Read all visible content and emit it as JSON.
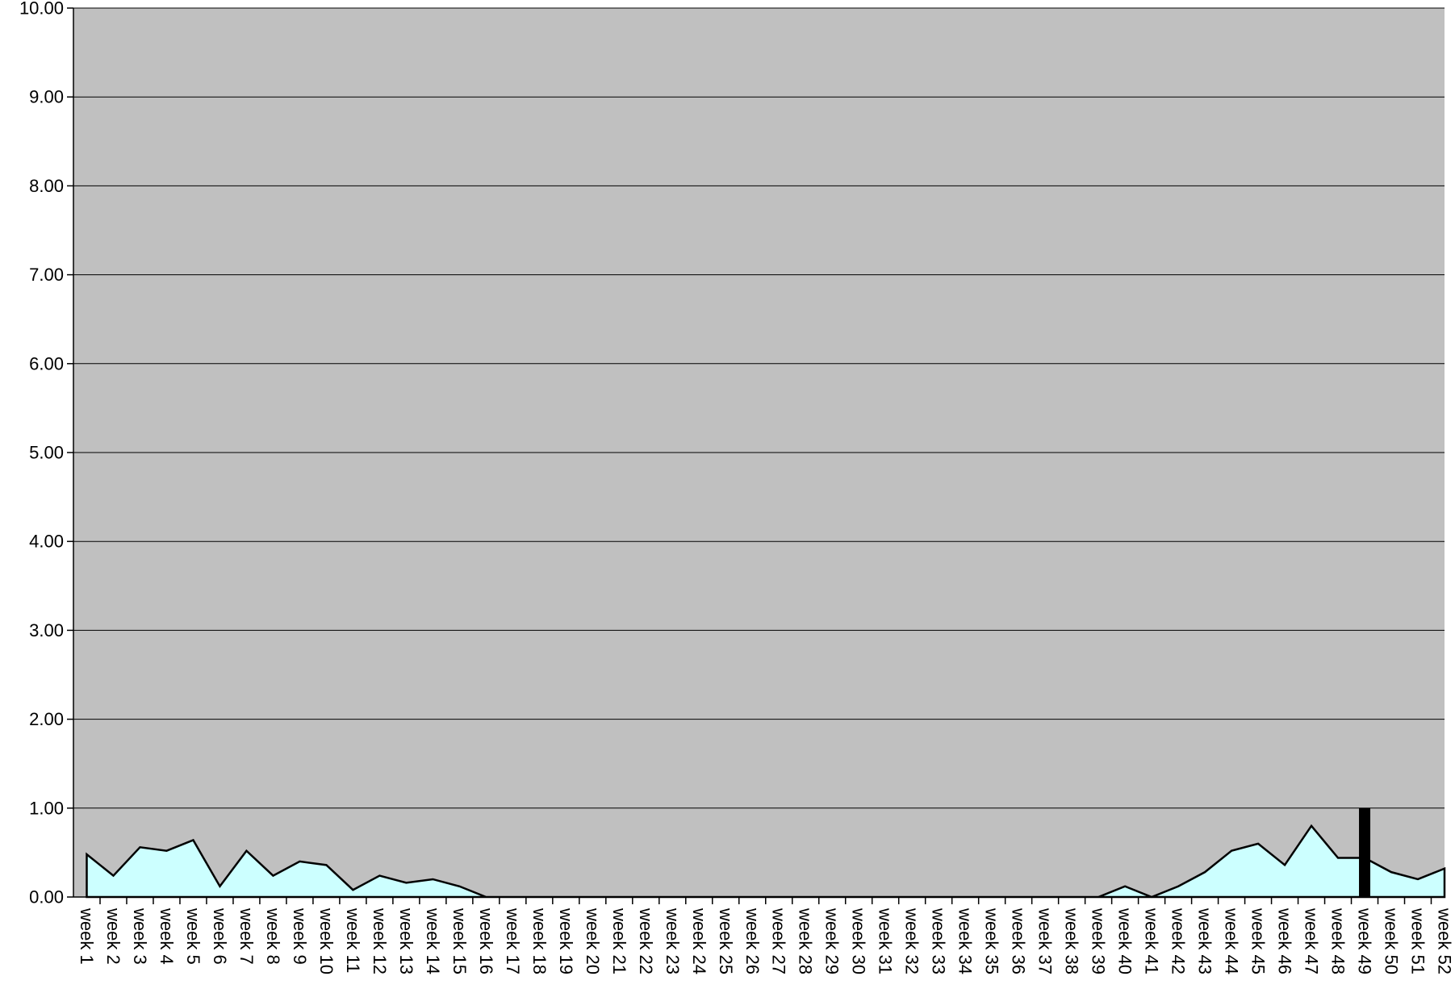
{
  "chart_data": {
    "type": "area",
    "categories": [
      "week 1",
      "week 2",
      "week 3",
      "week 4",
      "week 5",
      "week 6",
      "week 7",
      "week 8",
      "week 9",
      "week 10",
      "week 11",
      "week 12",
      "week 13",
      "week 14",
      "week 15",
      "week 16",
      "week 17",
      "week 18",
      "week 19",
      "week 20",
      "week 21",
      "week 22",
      "week 23",
      "week 24",
      "week 25",
      "week 26",
      "week 27",
      "week 28",
      "week 29",
      "week 30",
      "week 31",
      "week 32",
      "week 33",
      "week 34",
      "week 35",
      "week 36",
      "week 37",
      "week 38",
      "week 39",
      "week 40",
      "week 41",
      "week 42",
      "week 43",
      "week 44",
      "week 45",
      "week 46",
      "week 47",
      "week 48",
      "week 49",
      "week 50",
      "week 51",
      "week 52"
    ],
    "series": [
      {
        "type": "area",
        "values": [
          0.48,
          0.24,
          0.56,
          0.52,
          0.64,
          0.12,
          0.52,
          0.24,
          0.4,
          0.36,
          0.08,
          0.24,
          0.16,
          0.2,
          0.12,
          0.0,
          0.0,
          0.0,
          0.0,
          0.0,
          0.0,
          0.0,
          0.0,
          0.0,
          0.0,
          0.0,
          0.0,
          0.0,
          0.0,
          0.0,
          0.0,
          0.0,
          0.0,
          0.0,
          0.0,
          0.0,
          0.0,
          0.0,
          0.0,
          0.12,
          0.0,
          0.12,
          0.28,
          0.52,
          0.6,
          0.36,
          0.8,
          0.44,
          0.44,
          0.28,
          0.2,
          0.32
        ],
        "color": "#ccffff"
      },
      {
        "type": "bar",
        "category": "week 49",
        "value": 1.0,
        "color": "#000000"
      }
    ],
    "y_ticks": [
      "0.00",
      "1.00",
      "2.00",
      "3.00",
      "4.00",
      "5.00",
      "6.00",
      "7.00",
      "8.00",
      "9.00",
      "10.00"
    ],
    "ylim": [
      0,
      10
    ],
    "grid": true,
    "plot_background": "#c0c0c0",
    "title": "",
    "xlabel": "",
    "ylabel": ""
  }
}
